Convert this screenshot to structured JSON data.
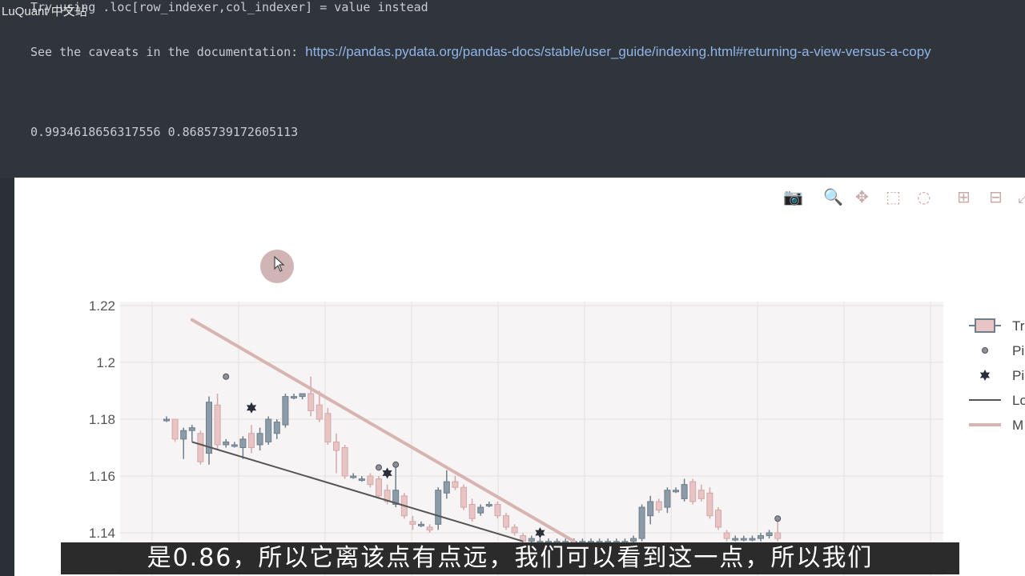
{
  "watermark": "LuQuant 中文站",
  "output": {
    "line1": "Try using .loc[row_indexer,col_indexer] = value instead",
    "line2_prefix": "See the caveats in the documentation: ",
    "line2_link": "https://pandas.pydata.org/pandas-docs/stable/user_guide/indexing.html#returning-a-view-versus-a-copy",
    "line3": "0.9934618656317556 0.8685739172605113"
  },
  "modebar": {
    "icons": [
      "camera-icon",
      "zoom-icon",
      "pan-icon",
      "box-select-icon",
      "lasso-select-icon",
      "zoom-in-icon",
      "zoom-out-icon",
      "autoscale-icon"
    ]
  },
  "chart_data": {
    "type": "candlestick",
    "yticks": [
      "1.22",
      "1.2",
      "1.18",
      "1.16",
      "1.14"
    ],
    "ylim": [
      1.135,
      1.22
    ],
    "legend": [
      "Tr",
      "Pi",
      "Pi",
      "Lo",
      "M"
    ],
    "colors": {
      "increasing": "#8c9ba8",
      "decreasing": "#e8c4c4",
      "max_line": "#d8b4b0",
      "low_line": "#555555",
      "pivot": "#2a2d3a"
    },
    "candles": [
      {
        "o": 1.18,
        "h": 1.181,
        "l": 1.179,
        "c": 1.18
      },
      {
        "o": 1.18,
        "h": 1.18,
        "l": 1.172,
        "c": 1.173
      },
      {
        "o": 1.173,
        "h": 1.177,
        "l": 1.166,
        "c": 1.176
      },
      {
        "o": 1.176,
        "h": 1.178,
        "l": 1.172,
        "c": 1.177
      },
      {
        "o": 1.175,
        "h": 1.176,
        "l": 1.164,
        "c": 1.165
      },
      {
        "o": 1.168,
        "h": 1.188,
        "l": 1.164,
        "c": 1.186
      },
      {
        "o": 1.185,
        "h": 1.189,
        "l": 1.169,
        "c": 1.171
      },
      {
        "o": 1.171,
        "h": 1.173,
        "l": 1.17,
        "c": 1.172
      },
      {
        "o": 1.171,
        "h": 1.172,
        "l": 1.17,
        "c": 1.171
      },
      {
        "o": 1.17,
        "h": 1.174,
        "l": 1.166,
        "c": 1.173
      },
      {
        "o": 1.175,
        "h": 1.178,
        "l": 1.168,
        "c": 1.17
      },
      {
        "o": 1.171,
        "h": 1.177,
        "l": 1.169,
        "c": 1.175
      },
      {
        "o": 1.172,
        "h": 1.181,
        "l": 1.171,
        "c": 1.18
      },
      {
        "o": 1.175,
        "h": 1.18,
        "l": 1.173,
        "c": 1.179
      },
      {
        "o": 1.178,
        "h": 1.189,
        "l": 1.177,
        "c": 1.188
      },
      {
        "o": 1.188,
        "h": 1.189,
        "l": 1.187,
        "c": 1.188
      },
      {
        "o": 1.188,
        "h": 1.189,
        "l": 1.187,
        "c": 1.189
      },
      {
        "o": 1.189,
        "h": 1.195,
        "l": 1.181,
        "c": 1.183
      },
      {
        "o": 1.185,
        "h": 1.19,
        "l": 1.179,
        "c": 1.18
      },
      {
        "o": 1.182,
        "h": 1.184,
        "l": 1.171,
        "c": 1.172
      },
      {
        "o": 1.172,
        "h": 1.175,
        "l": 1.161,
        "c": 1.169
      },
      {
        "o": 1.17,
        "h": 1.171,
        "l": 1.159,
        "c": 1.16
      },
      {
        "o": 1.16,
        "h": 1.161,
        "l": 1.159,
        "c": 1.16
      },
      {
        "o": 1.159,
        "h": 1.16,
        "l": 1.158,
        "c": 1.159
      },
      {
        "o": 1.16,
        "h": 1.161,
        "l": 1.156,
        "c": 1.157
      },
      {
        "o": 1.159,
        "h": 1.16,
        "l": 1.152,
        "c": 1.153
      },
      {
        "o": 1.155,
        "h": 1.157,
        "l": 1.15,
        "c": 1.151
      },
      {
        "o": 1.15,
        "h": 1.164,
        "l": 1.149,
        "c": 1.155
      },
      {
        "o": 1.153,
        "h": 1.154,
        "l": 1.145,
        "c": 1.146
      },
      {
        "o": 1.144,
        "h": 1.146,
        "l": 1.141,
        "c": 1.143
      },
      {
        "o": 1.143,
        "h": 1.144,
        "l": 1.142,
        "c": 1.143
      },
      {
        "o": 1.142,
        "h": 1.143,
        "l": 1.14,
        "c": 1.141
      },
      {
        "o": 1.143,
        "h": 1.156,
        "l": 1.141,
        "c": 1.155
      },
      {
        "o": 1.154,
        "h": 1.162,
        "l": 1.152,
        "c": 1.158
      },
      {
        "o": 1.158,
        "h": 1.16,
        "l": 1.155,
        "c": 1.156
      },
      {
        "o": 1.156,
        "h": 1.157,
        "l": 1.148,
        "c": 1.149
      },
      {
        "o": 1.15,
        "h": 1.152,
        "l": 1.144,
        "c": 1.145
      },
      {
        "o": 1.147,
        "h": 1.15,
        "l": 1.146,
        "c": 1.149
      },
      {
        "o": 1.15,
        "h": 1.151,
        "l": 1.149,
        "c": 1.15
      },
      {
        "o": 1.15,
        "h": 1.151,
        "l": 1.145,
        "c": 1.146
      },
      {
        "o": 1.146,
        "h": 1.147,
        "l": 1.141,
        "c": 1.142
      },
      {
        "o": 1.142,
        "h": 1.143,
        "l": 1.139,
        "c": 1.14
      },
      {
        "o": 1.139,
        "h": 1.14,
        "l": 1.136,
        "c": 1.137
      },
      {
        "o": 1.137,
        "h": 1.139,
        "l": 1.135,
        "c": 1.138
      },
      {
        "o": 1.137,
        "h": 1.138,
        "l": 1.136,
        "c": 1.137
      },
      {
        "o": 1.137,
        "h": 1.138,
        "l": 1.136,
        "c": 1.137
      },
      {
        "o": 1.137,
        "h": 1.138,
        "l": 1.136,
        "c": 1.137
      },
      {
        "o": 1.137,
        "h": 1.138,
        "l": 1.136,
        "c": 1.137
      },
      {
        "o": 1.137,
        "h": 1.138,
        "l": 1.136,
        "c": 1.137
      },
      {
        "o": 1.137,
        "h": 1.138,
        "l": 1.136,
        "c": 1.137
      },
      {
        "o": 1.137,
        "h": 1.138,
        "l": 1.136,
        "c": 1.137
      },
      {
        "o": 1.137,
        "h": 1.138,
        "l": 1.136,
        "c": 1.137
      },
      {
        "o": 1.137,
        "h": 1.138,
        "l": 1.136,
        "c": 1.137
      },
      {
        "o": 1.137,
        "h": 1.138,
        "l": 1.136,
        "c": 1.137
      },
      {
        "o": 1.137,
        "h": 1.138,
        "l": 1.136,
        "c": 1.137
      },
      {
        "o": 1.137,
        "h": 1.139,
        "l": 1.136,
        "c": 1.138
      },
      {
        "o": 1.138,
        "h": 1.15,
        "l": 1.137,
        "c": 1.149
      },
      {
        "o": 1.146,
        "h": 1.153,
        "l": 1.143,
        "c": 1.151
      },
      {
        "o": 1.151,
        "h": 1.152,
        "l": 1.147,
        "c": 1.148
      },
      {
        "o": 1.149,
        "h": 1.156,
        "l": 1.147,
        "c": 1.155
      },
      {
        "o": 1.155,
        "h": 1.156,
        "l": 1.154,
        "c": 1.155
      },
      {
        "o": 1.152,
        "h": 1.159,
        "l": 1.151,
        "c": 1.157
      },
      {
        "o": 1.158,
        "h": 1.159,
        "l": 1.15,
        "c": 1.151
      },
      {
        "o": 1.155,
        "h": 1.157,
        "l": 1.151,
        "c": 1.152
      },
      {
        "o": 1.154,
        "h": 1.156,
        "l": 1.145,
        "c": 1.146
      },
      {
        "o": 1.148,
        "h": 1.149,
        "l": 1.141,
        "c": 1.142
      },
      {
        "o": 1.14,
        "h": 1.141,
        "l": 1.137,
        "c": 1.138
      },
      {
        "o": 1.138,
        "h": 1.139,
        "l": 1.137,
        "c": 1.138
      },
      {
        "o": 1.138,
        "h": 1.139,
        "l": 1.137,
        "c": 1.138
      },
      {
        "o": 1.138,
        "h": 1.139,
        "l": 1.137,
        "c": 1.138
      },
      {
        "o": 1.138,
        "h": 1.14,
        "l": 1.137,
        "c": 1.139
      },
      {
        "o": 1.139,
        "h": 1.141,
        "l": 1.138,
        "c": 1.14
      },
      {
        "o": 1.14,
        "h": 1.145,
        "l": 1.137,
        "c": 1.138
      }
    ],
    "max_line": [
      [
        3,
        1.215
      ],
      [
        48,
        1.137
      ]
    ],
    "low_line": [
      [
        3,
        1.172
      ],
      [
        42,
        1.137
      ]
    ],
    "pivot_stars": [
      [
        10,
        1.184
      ],
      [
        26,
        1.161
      ],
      [
        44,
        1.14
      ]
    ],
    "pivot_dots": [
      [
        7,
        1.195
      ],
      [
        27,
        1.164
      ],
      [
        25,
        1.163
      ],
      [
        72,
        1.145
      ]
    ]
  },
  "subtitle": "是0.86，所以它离该点有点远，我们可以看到这一点，所以我们"
}
